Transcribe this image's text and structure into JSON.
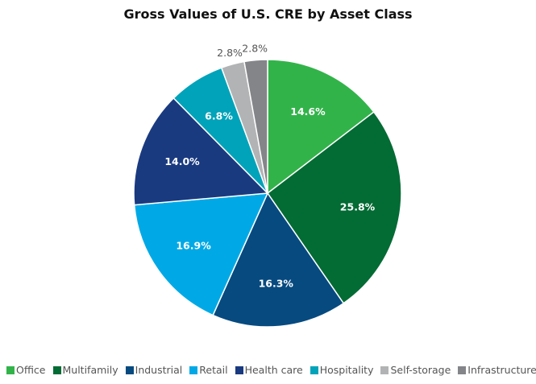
{
  "chart_data": {
    "type": "pie",
    "title": "Gross Values of U.S. CRE by Asset Class",
    "categories": [
      "Office",
      "Multifamily",
      "Industrial",
      "Retail",
      "Health care",
      "Hospitality",
      "Self-storage",
      "Infrastructure"
    ],
    "values": [
      14.6,
      25.8,
      16.3,
      16.9,
      14.0,
      6.8,
      2.8,
      2.8
    ],
    "labels": [
      "14.6%",
      "25.8%",
      "16.3%",
      "16.9%",
      "14.0%",
      "6.8%",
      "2.8%",
      "2.8%"
    ],
    "colors": [
      "#32b34a",
      "#036b34",
      "#064a80",
      "#00a9e6",
      "#1a3a80",
      "#00a3b9",
      "#b2b3b5",
      "#848589"
    ],
    "start": "12 o'clock, clockwise",
    "legend_position": "bottom"
  }
}
